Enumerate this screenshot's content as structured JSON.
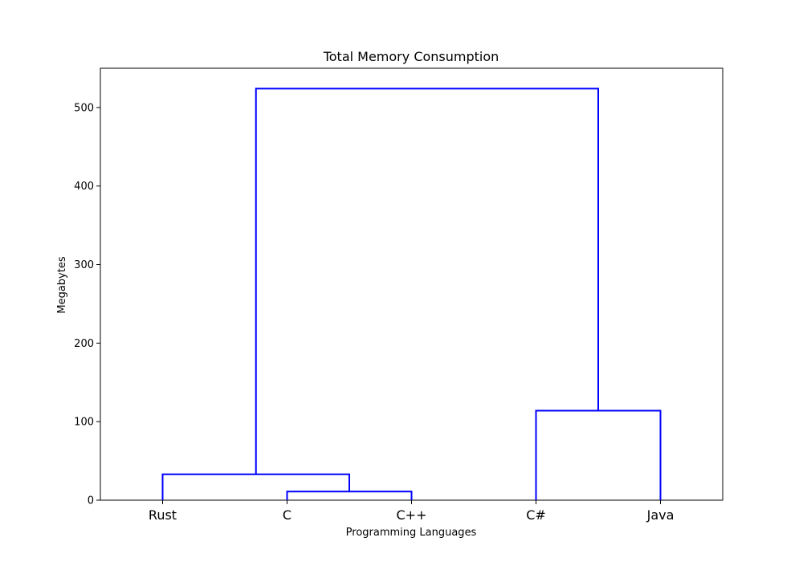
{
  "chart_data": {
    "type": "dendrogram",
    "title": "Total Memory Consumption",
    "xlabel": "Programming Languages",
    "ylabel": "Megabytes",
    "ylim": [
      0,
      550
    ],
    "yticks": [
      0,
      100,
      200,
      300,
      400,
      500
    ],
    "leaves": [
      "Rust",
      "C",
      "C++",
      "C#",
      "Java"
    ],
    "merges": [
      {
        "left": "C",
        "right": "C++",
        "height": 11
      },
      {
        "left": "Rust",
        "right": "C+C++",
        "height": 33
      },
      {
        "left": "C#",
        "right": "Java",
        "height": 114
      },
      {
        "left": "Rust+C+C++",
        "right": "C#+Java",
        "height": 524
      }
    ],
    "link_color": "#0000ff",
    "grid": false,
    "legend": "none"
  }
}
